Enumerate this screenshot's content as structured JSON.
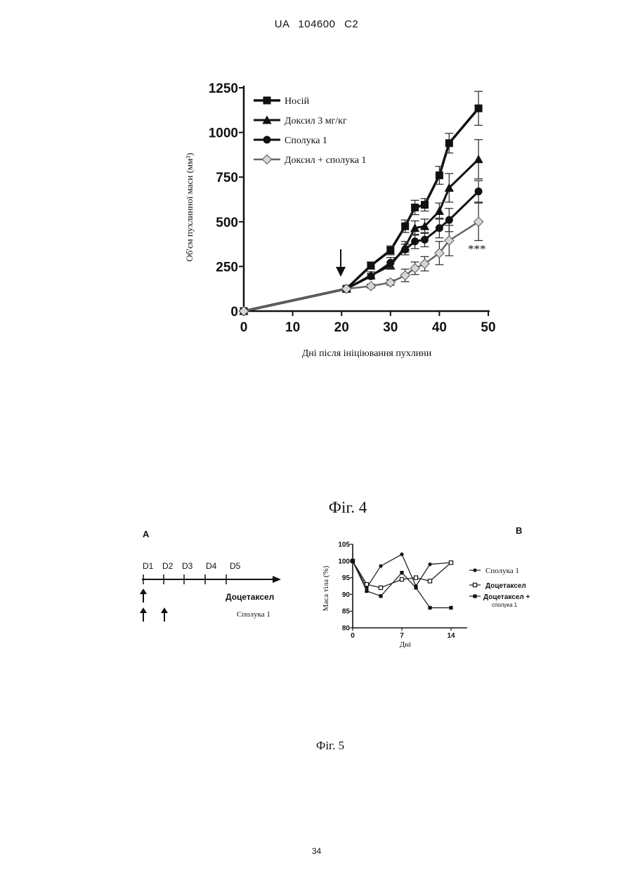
{
  "header": {
    "text": "UA  104600  C2"
  },
  "page_number": "34",
  "fig4": {
    "caption": "Фіг. 4",
    "significance": "***"
  },
  "fig5": {
    "caption": "Фіг. 5",
    "panel_a": {
      "label": "A",
      "days": [
        "D1",
        "D2",
        "D3",
        "D4",
        "D5"
      ],
      "drug_1": "Доцетаксел",
      "drug_2": "Сполука 1"
    },
    "panel_b": {
      "label": "B"
    }
  },
  "chart_data": [
    {
      "type": "line",
      "title": "",
      "xlabel": "Дні після ініціювання пухлини",
      "ylabel": "Об'єм пухлинної маси (мм³)",
      "xlim": [
        0,
        50
      ],
      "ylim": [
        0,
        1250
      ],
      "xticks": [
        0,
        10,
        20,
        30,
        40,
        50
      ],
      "yticks": [
        0,
        250,
        500,
        750,
        1000,
        1250
      ],
      "legend_position": "top-left",
      "annotations": [
        {
          "text": "***",
          "x": 48,
          "y": 350
        }
      ],
      "treatment_arrow_day": 20,
      "series": [
        {
          "name": "Носій",
          "marker": "square",
          "x": [
            0,
            21,
            26,
            30,
            33,
            35,
            37,
            40,
            42,
            48
          ],
          "y": [
            0,
            125,
            255,
            340,
            475,
            580,
            595,
            760,
            940,
            1135
          ],
          "err": [
            0,
            10,
            20,
            25,
            35,
            40,
            35,
            50,
            55,
            95
          ]
        },
        {
          "name": "Доксил 3 мг/кг",
          "marker": "triangle",
          "x": [
            0,
            21,
            26,
            30,
            33,
            35,
            37,
            40,
            42,
            48
          ],
          "y": [
            0,
            125,
            200,
            255,
            360,
            465,
            475,
            560,
            690,
            850
          ],
          "err": [
            0,
            10,
            20,
            20,
            30,
            40,
            40,
            45,
            80,
            110
          ]
        },
        {
          "name": "Сполука 1",
          "marker": "circle",
          "x": [
            0,
            21,
            26,
            30,
            33,
            35,
            37,
            40,
            42,
            48
          ],
          "y": [
            0,
            125,
            195,
            270,
            345,
            390,
            400,
            465,
            510,
            670
          ],
          "err": [
            0,
            10,
            15,
            30,
            30,
            40,
            40,
            55,
            65,
            60
          ]
        },
        {
          "name": "Доксил + сполука 1",
          "marker": "diamond",
          "x": [
            0,
            21,
            26,
            30,
            33,
            35,
            37,
            40,
            42,
            48
          ],
          "y": [
            0,
            125,
            140,
            160,
            200,
            240,
            265,
            325,
            395,
            500
          ],
          "err": [
            0,
            10,
            10,
            15,
            35,
            35,
            40,
            65,
            85,
            105
          ]
        }
      ]
    },
    {
      "type": "line",
      "title": "",
      "xlabel": "Дні",
      "ylabel": "Маса тіла (%)",
      "xlim": [
        0,
        14
      ],
      "ylim": [
        80,
        105
      ],
      "xticks": [
        0,
        7,
        14
      ],
      "yticks": [
        80,
        85,
        90,
        95,
        100,
        105
      ],
      "legend_position": "right",
      "series": [
        {
          "name": "Сполука 1",
          "marker": "circle",
          "x": [
            0,
            2,
            4,
            7,
            9,
            11,
            14
          ],
          "y": [
            100,
            92,
            98.5,
            102,
            92.5,
            99,
            99.5
          ]
        },
        {
          "name": "Доцетаксел",
          "marker": "open-square",
          "x": [
            0,
            2,
            4,
            7,
            9,
            11,
            14
          ],
          "y": [
            100,
            93,
            92,
            94.5,
            95,
            94,
            99.5
          ]
        },
        {
          "name": "Доцетаксел + сполука 1",
          "marker": "square",
          "x": [
            0,
            2,
            4,
            7,
            9,
            11,
            14
          ],
          "y": [
            100,
            91,
            89.5,
            96.5,
            92,
            86,
            86
          ]
        }
      ]
    }
  ]
}
